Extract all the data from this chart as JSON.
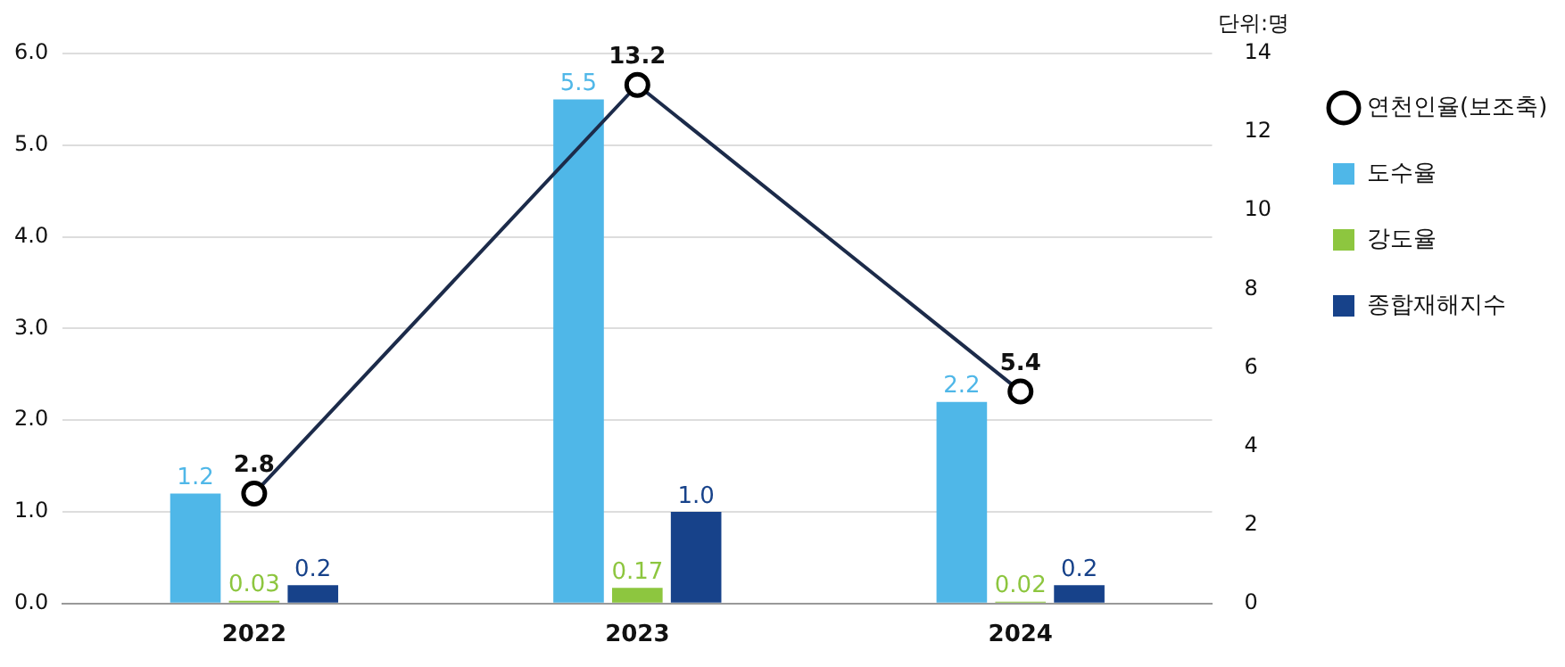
{
  "chart_data": {
    "type": "bar",
    "categories": [
      "2022",
      "2023",
      "2024"
    ],
    "series": [
      {
        "name": "도수율",
        "color": "#4fb7e8",
        "values": [
          1.2,
          5.5,
          2.2
        ]
      },
      {
        "name": "강도율",
        "color": "#8dc63f",
        "values": [
          0.03,
          0.17,
          0.02
        ]
      },
      {
        "name": "종합재해지수",
        "color": "#17428a",
        "values": [
          0.2,
          1.0,
          0.2
        ],
        "value_labels": [
          "0.2",
          "1.0",
          "0.2"
        ]
      },
      {
        "name": "연천인율(보조축)",
        "type": "line",
        "axis": "y2",
        "color": "#1c2b4a",
        "values": [
          2.8,
          13.2,
          5.4
        ]
      }
    ],
    "ylim": [
      0,
      6
    ],
    "yticks": [
      {
        "value": 0,
        "label": "0.0"
      },
      {
        "value": 1,
        "label": "1.0"
      },
      {
        "value": 2,
        "label": "2.0"
      },
      {
        "value": 3,
        "label": "3.0"
      },
      {
        "value": 4,
        "label": "4.0"
      },
      {
        "value": 5,
        "label": "5.0"
      },
      {
        "value": 6,
        "label": "6.0"
      }
    ],
    "y2lim": [
      0,
      14
    ],
    "y2ticks": [
      0,
      2,
      4,
      6,
      8,
      10,
      12,
      14
    ],
    "y2label": "단위:명",
    "grid": "y",
    "legend": "right",
    "marker": "circle",
    "data_labels": true
  }
}
